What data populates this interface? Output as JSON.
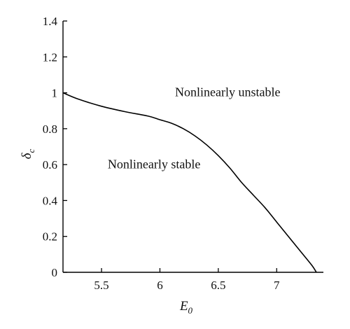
{
  "chart_data": {
    "type": "line",
    "title": "",
    "xlabel": {
      "symbol": "E",
      "subscript": "0"
    },
    "ylabel": {
      "symbol": "δ",
      "subscript": "c"
    },
    "xlim": [
      5.17,
      7.4
    ],
    "ylim": [
      0,
      1.4
    ],
    "xticks": [
      5.5,
      6,
      6.5,
      7
    ],
    "xtick_labels": [
      "5.5",
      "6",
      "6.5",
      "7"
    ],
    "yticks": [
      0,
      0.2,
      0.4,
      0.6,
      0.8,
      1,
      1.2,
      1.4
    ],
    "ytick_labels": [
      "0",
      "0.2",
      "0.4",
      "0.6",
      "0.8",
      "1",
      "1.2",
      "1.4"
    ],
    "grid": false,
    "legend": "none",
    "series": [
      {
        "x": [
          5.17,
          5.3,
          5.5,
          5.7,
          5.9,
          6.0,
          6.1,
          6.2,
          6.3,
          6.4,
          6.5,
          6.6,
          6.7,
          6.8,
          6.9,
          7.0,
          7.1,
          7.2,
          7.3,
          7.34
        ],
        "y": [
          1.0,
          0.965,
          0.925,
          0.895,
          0.87,
          0.85,
          0.83,
          0.8,
          0.76,
          0.71,
          0.65,
          0.58,
          0.5,
          0.43,
          0.36,
          0.28,
          0.2,
          0.12,
          0.04,
          0.0
        ]
      }
    ],
    "annotations": [
      {
        "text": "Nonlinearly unstable",
        "x": 6.58,
        "y": 0.98
      },
      {
        "text": "Nonlinearly stable",
        "x": 5.95,
        "y": 0.58
      }
    ],
    "colors": {
      "line": "#000000",
      "axis": "#000000",
      "text": "#111111"
    }
  }
}
